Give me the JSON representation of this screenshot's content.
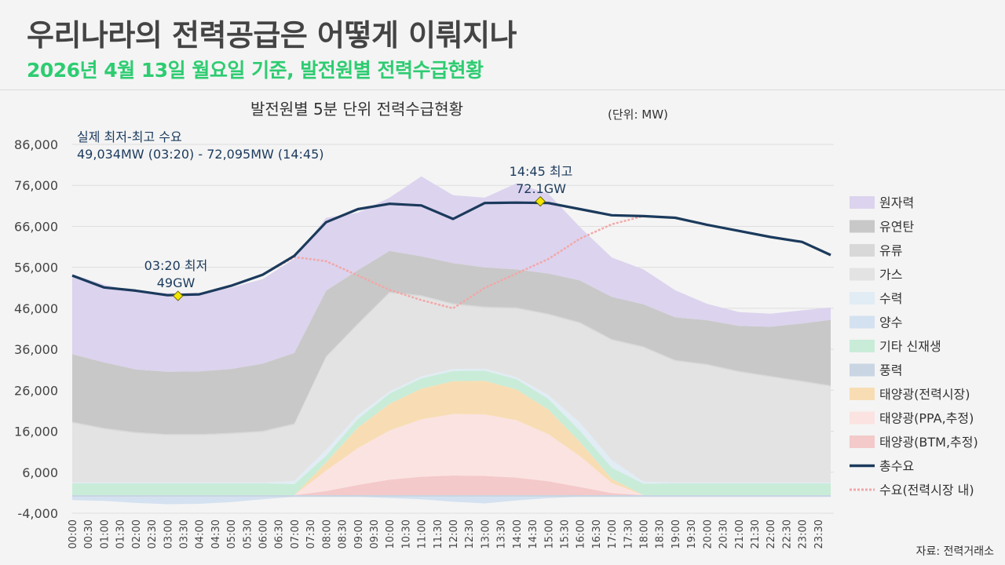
{
  "header": {
    "title": "우리나라의 전력공급은 어떻게 이뤄지나",
    "subtitle": "2026년 4월 13일 월요일 기준, 발전원별 전력수급현황"
  },
  "source": "자료: 전력거래소",
  "chart_data": {
    "type": "area",
    "title": "발전원별 5분 단위 전력수급현황",
    "unit_label": "(단위: MW)",
    "ylim": [
      -4000,
      86000
    ],
    "yticks": [
      86000,
      76000,
      66000,
      56000,
      46000,
      36000,
      26000,
      16000,
      6000,
      -4000
    ],
    "ytick_labels": [
      "86,000",
      "76,000",
      "66,000",
      "56,000",
      "46,000",
      "36,000",
      "26,000",
      "16,000",
      "6,000",
      "-4,000"
    ],
    "xticks": [
      "00:00",
      "00:30",
      "01:00",
      "01:30",
      "02:00",
      "02:30",
      "03:00",
      "03:30",
      "04:00",
      "04:30",
      "05:00",
      "05:30",
      "06:00",
      "06:30",
      "07:00",
      "07:30",
      "08:00",
      "08:30",
      "09:00",
      "09:30",
      "10:00",
      "10:30",
      "11:00",
      "11:30",
      "12:00",
      "12:30",
      "13:00",
      "13:30",
      "14:00",
      "14:30",
      "15:00",
      "15:30",
      "16:00",
      "16:30",
      "17:00",
      "17:30",
      "18:00",
      "18:30",
      "19:00",
      "19:30",
      "20:00",
      "20:30",
      "21:00",
      "21:30",
      "22:00",
      "22:30",
      "23:00",
      "23:30"
    ],
    "x_hours": [
      0,
      1,
      2,
      3,
      4,
      5,
      6,
      7,
      8,
      9,
      10,
      11,
      12,
      13,
      14,
      15,
      16,
      17,
      18,
      19,
      20,
      21,
      22,
      23,
      23.9
    ],
    "series": [
      {
        "name": "양수",
        "color": "#d4e1f0",
        "values": [
          -800,
          -1000,
          -1500,
          -1800,
          -1700,
          -1300,
          -600,
          0,
          0,
          0,
          -300,
          -600,
          -1200,
          -1600,
          -900,
          -300,
          0,
          0,
          0,
          0,
          0,
          0,
          0,
          0,
          0
        ]
      },
      {
        "name": "풍력",
        "color": "#c9d5e3",
        "values": [
          400,
          400,
          400,
          400,
          400,
          400,
          400,
          400,
          400,
          400,
          400,
          400,
          400,
          400,
          400,
          400,
          400,
          400,
          400,
          400,
          400,
          400,
          400,
          400,
          400
        ]
      },
      {
        "name": "태양광(BTM,추정)",
        "color": "#f4c9c9",
        "values": [
          0,
          0,
          0,
          0,
          0,
          0,
          0,
          0,
          1000,
          2500,
          3800,
          4500,
          4800,
          4700,
          4300,
          3400,
          2000,
          500,
          0,
          0,
          0,
          0,
          0,
          0,
          0
        ]
      },
      {
        "name": "태양광(PPA,추정)",
        "color": "#fbe3e1",
        "values": [
          0,
          0,
          0,
          0,
          0,
          0,
          0,
          0,
          5000,
          9000,
          12000,
          14000,
          15000,
          15000,
          14000,
          11500,
          7500,
          2500,
          0,
          0,
          0,
          0,
          0,
          0,
          0
        ]
      },
      {
        "name": "태양광(전력시장)",
        "color": "#f8ddb4",
        "values": [
          0,
          0,
          0,
          0,
          0,
          0,
          0,
          0,
          2000,
          5000,
          6500,
          7500,
          8000,
          8200,
          7500,
          6000,
          3500,
          1000,
          0,
          0,
          0,
          0,
          0,
          0,
          0
        ]
      },
      {
        "name": "기타 신재생",
        "color": "#c8ecd8",
        "values": [
          2900,
          2900,
          2900,
          2900,
          2900,
          2900,
          2900,
          2700,
          1600,
          2100,
          2500,
          2500,
          2500,
          2500,
          2500,
          2600,
          2700,
          2700,
          2800,
          2900,
          2900,
          2900,
          2900,
          2900,
          2900
        ]
      },
      {
        "name": "수력",
        "color": "#e1ecf4",
        "values": [
          200,
          200,
          200,
          200,
          200,
          200,
          200,
          800,
          1500,
          1000,
          500,
          500,
          500,
          500,
          500,
          1000,
          2000,
          1900,
          500,
          200,
          200,
          200,
          200,
          200,
          200
        ]
      },
      {
        "name": "가스",
        "color": "#e3e3e3",
        "values": [
          14500,
          13000,
          12000,
          11500,
          11500,
          11800,
          12300,
          13700,
          22500,
          22000,
          24000,
          19500,
          15700,
          14800,
          16700,
          19500,
          24200,
          29200,
          32700,
          29600,
          28600,
          26900,
          25700,
          24500,
          23400
        ]
      },
      {
        "name": "유류",
        "color": "#d8d8d8",
        "values": [
          300,
          300,
          300,
          300,
          300,
          300,
          300,
          300,
          300,
          300,
          300,
          300,
          300,
          300,
          300,
          300,
          300,
          300,
          300,
          300,
          300,
          300,
          300,
          300,
          300
        ]
      },
      {
        "name": "유연탄",
        "color": "#c8c8c8",
        "values": [
          16500,
          16000,
          15300,
          15200,
          15300,
          15600,
          16400,
          17200,
          16000,
          13000,
          10000,
          9500,
          9800,
          9600,
          9300,
          9800,
          10200,
          10300,
          10300,
          10400,
          10700,
          11000,
          12000,
          14000,
          16000
        ]
      },
      {
        "name": "원자력",
        "color": "#dcd3ee",
        "values": [
          19500,
          19000,
          19000,
          19200,
          19200,
          19800,
          20600,
          23000,
          17800,
          14000,
          13000,
          19500,
          16600,
          17000,
          21000,
          19500,
          13000,
          9600,
          8500,
          6600,
          4000,
          3400,
          3200,
          3200,
          3000
        ]
      }
    ],
    "total_demand": {
      "name": "총수요",
      "color": "#1b3a5c",
      "values": [
        54000,
        51100,
        50300,
        49200,
        49400,
        51500,
        54200,
        58800,
        67000,
        70200,
        71500,
        71100,
        67800,
        71700,
        71800,
        71700,
        70200,
        68700,
        68500,
        68100,
        66400,
        64900,
        63400,
        62200,
        59000
      ]
    },
    "market_demand": {
      "name": "수요(전력시장 내)",
      "color": "#f3a7a7",
      "values": [
        54000,
        51100,
        50300,
        49200,
        49400,
        51500,
        54200,
        58500,
        57500,
        54000,
        50500,
        48000,
        46000,
        51000,
        54500,
        58000,
        63000,
        66500,
        68500,
        68100,
        66400,
        64900,
        63400,
        62200,
        59000
      ]
    },
    "legend": [
      "원자력",
      "유연탄",
      "유류",
      "가스",
      "수력",
      "양수",
      "기타 신재생",
      "풍력",
      "태양광(전력시장)",
      "태양광(PPA,추정)",
      "태양광(BTM,추정)",
      "총수요",
      "수요(전력시장 내)"
    ],
    "legend_colors": [
      "#dcd3ee",
      "#c8c8c8",
      "#d8d8d8",
      "#e3e3e3",
      "#e1ecf4",
      "#d4e1f0",
      "#c8ecd8",
      "#c9d5e3",
      "#f8ddb4",
      "#fbe3e1",
      "#f4c9c9",
      "#1b3a5c",
      "#f3a7a7"
    ],
    "annotations": {
      "range_line1": "실제 최저-최고 수요",
      "range_line2": "49,034MW (03:20) - 72,095MW (14:45)",
      "min_line1": "03:20 최저",
      "min_line2": "49GW",
      "min_point": {
        "hour": 3.333,
        "value": 49034
      },
      "max_line1": "14:45 최고",
      "max_line2": "72.1GW",
      "max_point": {
        "hour": 14.75,
        "value": 72095
      }
    }
  }
}
